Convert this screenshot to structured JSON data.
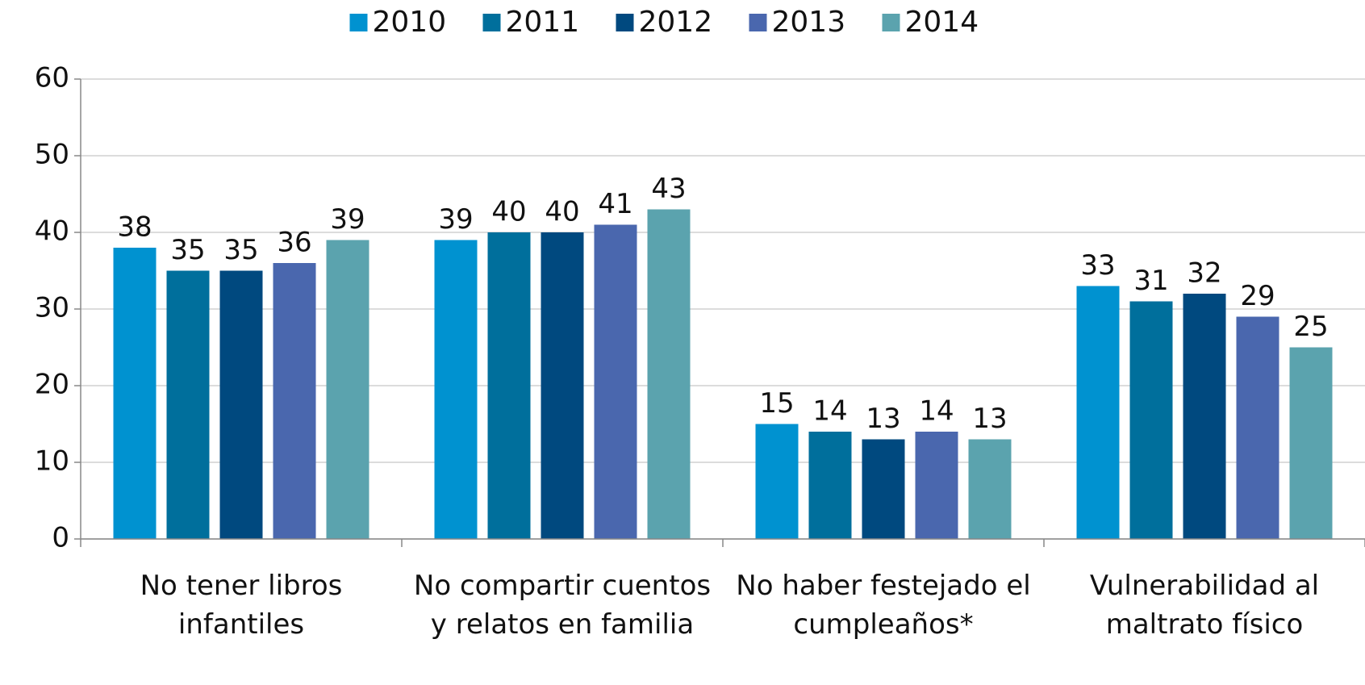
{
  "chart_data": {
    "type": "bar",
    "categories": [
      "No tener libros infantiles",
      "No compartir cuentos y relatos en familia",
      "No haber festejado el cumpleaños*",
      "Vulnerabilidad al maltrato físico"
    ],
    "series": [
      {
        "name": "2010",
        "color": "#0092d0",
        "values": [
          38,
          39,
          15,
          33
        ]
      },
      {
        "name": "2011",
        "color": "#006f9c",
        "values": [
          35,
          40,
          14,
          31
        ]
      },
      {
        "name": "2012",
        "color": "#00497f",
        "values": [
          35,
          40,
          13,
          32
        ]
      },
      {
        "name": "2013",
        "color": "#4a67ae",
        "values": [
          36,
          41,
          14,
          29
        ]
      },
      {
        "name": "2014",
        "color": "#5ba3ae",
        "values": [
          39,
          43,
          13,
          25
        ]
      }
    ],
    "ylim": [
      0,
      60
    ],
    "yticks": [
      0,
      10,
      20,
      30,
      40,
      50,
      60
    ],
    "grid": true,
    "legend": "top"
  }
}
